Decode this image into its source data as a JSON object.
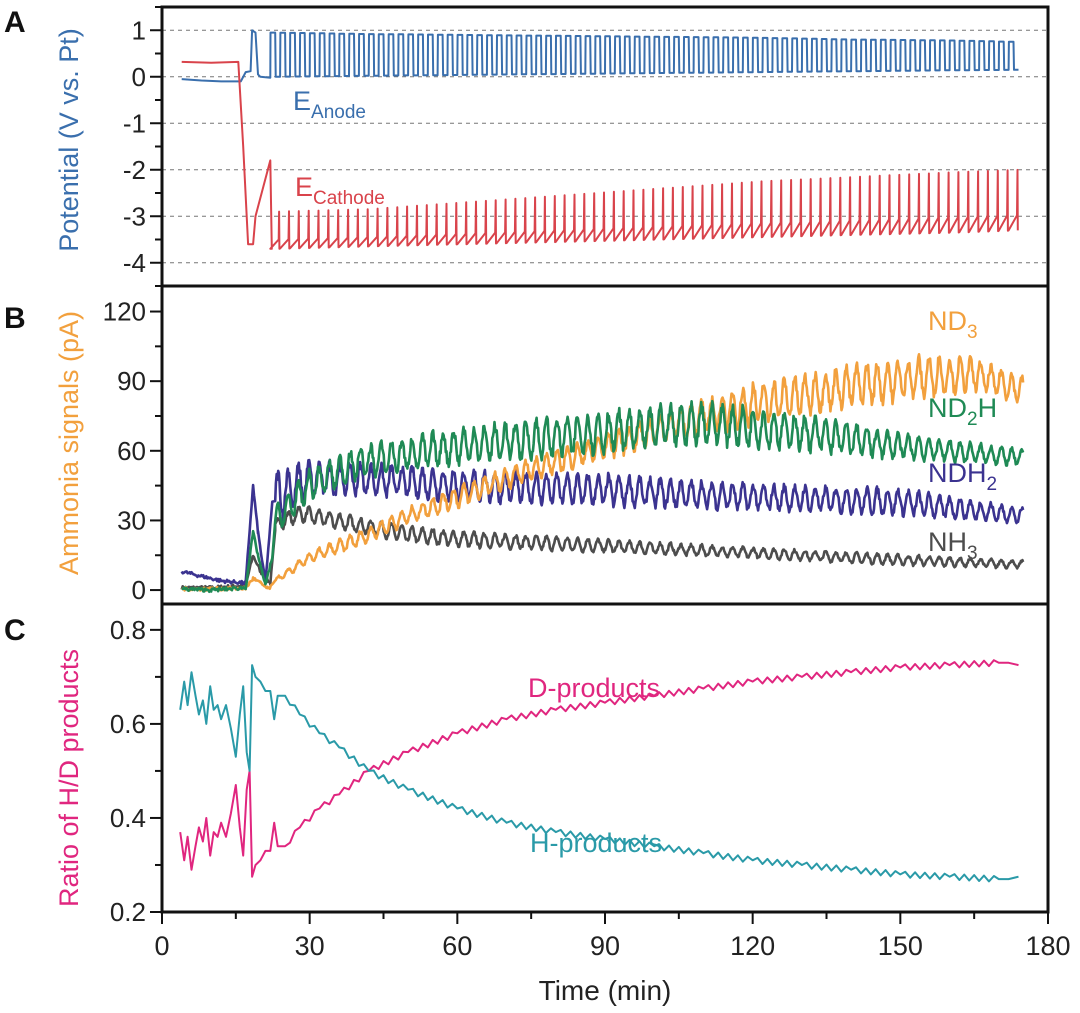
{
  "chart_data": [
    {
      "panel": "A",
      "type": "line",
      "ylabel": "Potential (V vs. Pt)",
      "ylabel_color": "#3a6fad",
      "xlim": [
        0,
        180
      ],
      "ylim": [
        -4.5,
        1.5
      ],
      "yticks": [
        1,
        0,
        -1,
        -2,
        -3,
        -4
      ],
      "ytick_labels": [
        "1",
        "0",
        "-1",
        "-2",
        "-3",
        "-4"
      ],
      "grid": "horizontal dashed at each major tick",
      "series": [
        {
          "label_main": "E",
          "label_sub": "Anode",
          "color": "#3a6fad",
          "style": "square",
          "points": {
            "x": [
              4,
              8,
              12,
              16,
              17,
              18,
              18.3,
              19,
              19.5,
              20,
              22
            ],
            "y": [
              -0.05,
              -0.08,
              -0.1,
              -0.1,
              0.1,
              0.12,
              1.0,
              0.95,
              0.05,
              0.0,
              -0.02
            ]
          },
          "oscillation": {
            "period_min": 2.0,
            "x": [
              22,
              40,
              60,
              80,
              100,
              120,
              140,
              160,
              173
            ],
            "upper": [
              0.95,
              0.92,
              0.9,
              0.88,
              0.86,
              0.84,
              0.8,
              0.78,
              0.75
            ],
            "lower": [
              0.0,
              0.02,
              0.04,
              0.06,
              0.08,
              0.1,
              0.12,
              0.14,
              0.15
            ]
          }
        },
        {
          "label_main": "E",
          "label_sub": "Cathode",
          "color": "#d9434b",
          "style": "sawtooth",
          "points": {
            "x": [
              4,
              10,
              15.5,
              16.5,
              17.5,
              18.5,
              19,
              22,
              22.3
            ],
            "y": [
              0.32,
              0.3,
              0.32,
              -1.5,
              -3.6,
              -3.6,
              -3.0,
              -1.8,
              -3.7
            ]
          },
          "oscillation": {
            "period_min": 2.0,
            "x": [
              22,
              40,
              60,
              80,
              100,
              120,
              140,
              160,
              173
            ],
            "upper": [
              -2.9,
              -2.85,
              -2.7,
              -2.55,
              -2.4,
              -2.25,
              -2.15,
              -2.05,
              -2.0
            ],
            "lower": [
              -3.7,
              -3.65,
              -3.6,
              -3.55,
              -3.5,
              -3.45,
              -3.4,
              -3.35,
              -3.3
            ]
          }
        }
      ]
    },
    {
      "panel": "B",
      "type": "line",
      "ylabel": "Ammonia signals (pA)",
      "ylabel_color": "#f2a03d",
      "xlim": [
        0,
        180
      ],
      "ylim": [
        -6,
        131
      ],
      "yticks": [
        120,
        90,
        60,
        30,
        0
      ],
      "ytick_labels": [
        "120",
        "90",
        "60",
        "30",
        "0"
      ],
      "series": [
        {
          "label_main": "ND",
          "label_sub": "3",
          "label_tail": "",
          "color": "#f2a03d",
          "points": {
            "x": [
              4,
              10,
              17,
              18.5,
              20,
              21.5,
              22.5
            ],
            "y": [
              0.5,
              0.5,
              0.8,
              5,
              3,
              0.5,
              2
            ]
          },
          "oscillation": {
            "period_min": 2.1,
            "x": [
              23,
              30,
              40,
              50,
              60,
              75,
              90,
              105,
              120,
              140,
              155,
              165,
              175
            ],
            "center": [
              4,
              14,
              22,
              32,
              40,
              52,
              62,
              72,
              80,
              88,
              92,
              93,
              86
            ],
            "amplitude": [
              1,
              2,
              3,
              3,
              4,
              4,
              5,
              6,
              8,
              8,
              8,
              6,
              5
            ]
          }
        },
        {
          "label_main": "ND",
          "label_sub": "2",
          "label_tail": "H",
          "color": "#1f8a55",
          "points": {
            "x": [
              4,
              10,
              17,
              18.5,
              19.5,
              21,
              22.5
            ],
            "y": [
              0.5,
              0,
              1,
              25,
              15,
              2,
              15
            ]
          },
          "oscillation": {
            "period_min": 2.1,
            "x": [
              23,
              30,
              40,
              60,
              90,
              110,
              130,
              150,
              175
            ],
            "center": [
              30,
              45,
              55,
              62,
              68,
              72,
              68,
              62,
              57
            ],
            "amplitude": [
              5,
              6,
              6,
              7,
              8,
              8,
              7,
              5,
              3
            ]
          }
        },
        {
          "label_main": "NDH",
          "label_sub": "2",
          "label_tail": "",
          "color": "#3b3390",
          "points": {
            "x": [
              4,
              8,
              12,
              17,
              18.5,
              19.5,
              21,
              22.5
            ],
            "y": [
              8,
              6,
              4,
              3,
              45,
              25,
              3,
              40
            ]
          },
          "oscillation": {
            "period_min": 2.1,
            "x": [
              23,
              30,
              40,
              60,
              90,
              120,
              150,
              175
            ],
            "center": [
              40,
              48,
              48,
              45,
              43,
              40,
              38,
              32
            ],
            "amplitude": [
              10,
              7,
              6,
              6,
              6,
              5,
              5,
              3
            ]
          }
        },
        {
          "label_main": "NH",
          "label_sub": "3",
          "label_tail": "",
          "color": "#4d4d4d",
          "points": {
            "x": [
              4,
              10,
              17,
              18.5,
              20,
              22,
              23
            ],
            "y": [
              1,
              1,
              2,
              15,
              8,
              3,
              25
            ]
          },
          "oscillation": {
            "period_min": 2.1,
            "x": [
              23,
              28,
              40,
              50,
              60,
              90,
              120,
              150,
              175
            ],
            "center": [
              28,
              33,
              28,
              24,
              22,
              19,
              16,
              13,
              11
            ],
            "amplitude": [
              3,
              3,
              3,
              3,
              3,
              2.5,
              2,
              2,
              1.5
            ]
          }
        }
      ]
    },
    {
      "panel": "C",
      "type": "line",
      "ylabel": "Ratio of H/D products",
      "ylabel_color": "#e0267f",
      "xlabel": "Time (min)",
      "xlim": [
        0,
        180
      ],
      "ylim": [
        0.2,
        0.855
      ],
      "xticks": [
        0,
        30,
        60,
        90,
        120,
        150,
        180
      ],
      "xtick_labels": [
        "0",
        "30",
        "60",
        "90",
        "120",
        "150",
        "180"
      ],
      "yticks": [
        0.8,
        0.6,
        0.4,
        0.2
      ],
      "ytick_labels": [
        "0.8",
        "0.6",
        "0.4",
        "0.2"
      ],
      "series": [
        {
          "label": "D-products",
          "color": "#e0267f",
          "x": [
            3.7,
            4.5,
            5.2,
            6,
            6.8,
            7.5,
            8.3,
            9,
            9.8,
            10.5,
            11.3,
            12,
            13,
            14,
            15,
            15.8,
            16.5,
            17.2,
            17.8,
            18.3,
            19,
            20,
            21,
            22,
            22.8,
            23.5,
            25,
            28,
            32,
            36,
            42,
            50,
            60,
            70,
            80,
            90,
            100,
            110,
            120,
            130,
            140,
            150,
            160,
            170,
            172,
            174
          ],
          "y": [
            0.37,
            0.31,
            0.36,
            0.29,
            0.34,
            0.38,
            0.35,
            0.4,
            0.32,
            0.37,
            0.36,
            0.39,
            0.36,
            0.41,
            0.47,
            0.38,
            0.32,
            0.46,
            0.5,
            0.275,
            0.3,
            0.31,
            0.33,
            0.33,
            0.39,
            0.34,
            0.34,
            0.38,
            0.42,
            0.45,
            0.5,
            0.54,
            0.58,
            0.61,
            0.63,
            0.645,
            0.66,
            0.675,
            0.69,
            0.7,
            0.71,
            0.72,
            0.725,
            0.73,
            0.73,
            0.725
          ]
        },
        {
          "label": "H-products",
          "color": "#2a9aa8",
          "x": [
            3.7,
            4.5,
            5.2,
            6,
            6.8,
            7.5,
            8.3,
            9,
            9.8,
            10.5,
            11.3,
            12,
            13,
            14,
            15,
            15.8,
            16.5,
            17.2,
            17.8,
            18.3,
            19,
            20,
            21,
            22,
            22.8,
            23.5,
            25,
            28,
            32,
            36,
            42,
            50,
            60,
            70,
            80,
            90,
            100,
            110,
            120,
            130,
            140,
            150,
            160,
            170,
            172,
            174
          ],
          "y": [
            0.63,
            0.69,
            0.64,
            0.71,
            0.66,
            0.62,
            0.65,
            0.6,
            0.68,
            0.63,
            0.64,
            0.61,
            0.64,
            0.59,
            0.53,
            0.62,
            0.68,
            0.54,
            0.5,
            0.725,
            0.7,
            0.69,
            0.67,
            0.67,
            0.61,
            0.66,
            0.66,
            0.62,
            0.58,
            0.55,
            0.5,
            0.46,
            0.42,
            0.39,
            0.37,
            0.355,
            0.34,
            0.325,
            0.31,
            0.3,
            0.29,
            0.28,
            0.275,
            0.27,
            0.27,
            0.275
          ]
        }
      ]
    }
  ],
  "panel_letters": [
    "A",
    "B",
    "C"
  ]
}
